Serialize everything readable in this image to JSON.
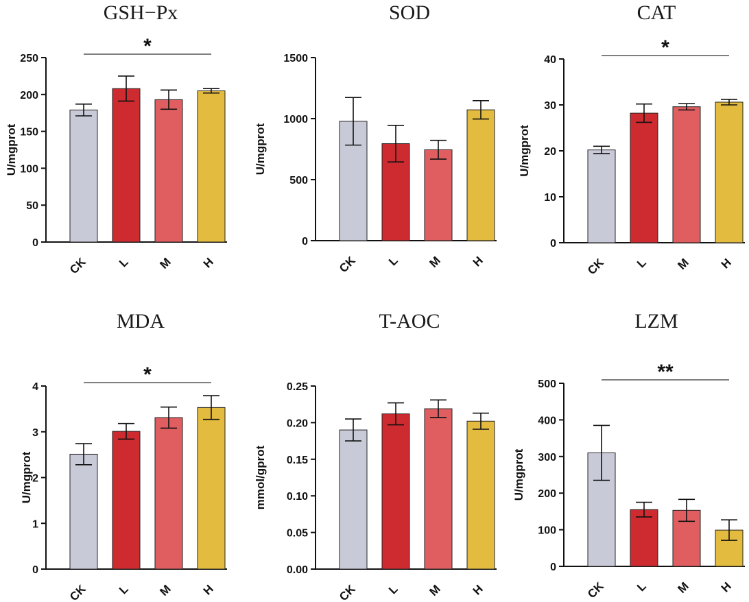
{
  "colors": {
    "CK": "#c9cad8",
    "L": "#cd2b30",
    "M": "#e05e60",
    "H": "#e3bb3f",
    "axis": "#111111"
  },
  "chart_data": [
    {
      "type": "bar",
      "title": "GSH−Px",
      "ylabel": "U/mgprot",
      "categories": [
        "CK",
        "L",
        "M",
        "H"
      ],
      "values": [
        179,
        208,
        193,
        205
      ],
      "errors": [
        8,
        17,
        13,
        3
      ],
      "ylim": [
        0,
        250
      ],
      "yticks": [
        "0",
        "50",
        "100",
        "150",
        "200",
        "250"
      ],
      "significance": "*"
    },
    {
      "type": "bar",
      "title": "SOD",
      "ylabel": "U/mgprot",
      "categories": [
        "CK",
        "L",
        "M",
        "H"
      ],
      "values": [
        978,
        795,
        745,
        1072
      ],
      "errors": [
        195,
        150,
        77,
        75
      ],
      "ylim": [
        0,
        1500
      ],
      "yticks": [
        "0",
        "500",
        "1000",
        "1500"
      ],
      "significance": ""
    },
    {
      "type": "bar",
      "title": "CAT",
      "ylabel": "U/mgprot",
      "categories": [
        "CK",
        "L",
        "M",
        "H"
      ],
      "values": [
        20.2,
        28.2,
        29.6,
        30.6
      ],
      "errors": [
        0.8,
        2.0,
        0.7,
        0.6
      ],
      "ylim": [
        0,
        40
      ],
      "yticks": [
        "0",
        "10",
        "20",
        "30",
        "40"
      ],
      "significance": "*"
    },
    {
      "type": "bar",
      "title": "MDA",
      "ylabel": "U/mgprot",
      "categories": [
        "CK",
        "L",
        "M",
        "H"
      ],
      "values": [
        2.51,
        3.01,
        3.31,
        3.53
      ],
      "errors": [
        0.23,
        0.17,
        0.23,
        0.26
      ],
      "ylim": [
        0,
        4
      ],
      "yticks": [
        "0",
        "1",
        "2",
        "3",
        "4"
      ],
      "significance": "*"
    },
    {
      "type": "bar",
      "title": "T-AOC",
      "ylabel": "mmol/gprot",
      "categories": [
        "CK",
        "L",
        "M",
        "H"
      ],
      "values": [
        0.19,
        0.212,
        0.219,
        0.202
      ],
      "errors": [
        0.015,
        0.015,
        0.012,
        0.011
      ],
      "ylim": [
        0,
        0.25
      ],
      "yticks": [
        "0.00",
        "0.05",
        "0.10",
        "0.15",
        "0.20",
        "0.25"
      ],
      "significance": ""
    },
    {
      "type": "bar",
      "title": "LZM",
      "ylabel": "U/mgprot",
      "categories": [
        "CK",
        "L",
        "M",
        "H"
      ],
      "values": [
        310,
        155,
        153,
        99
      ],
      "errors": [
        75,
        20,
        30,
        28
      ],
      "ylim": [
        0,
        500
      ],
      "yticks": [
        "0",
        "100",
        "200",
        "300",
        "400",
        "500"
      ],
      "significance": "**"
    }
  ]
}
